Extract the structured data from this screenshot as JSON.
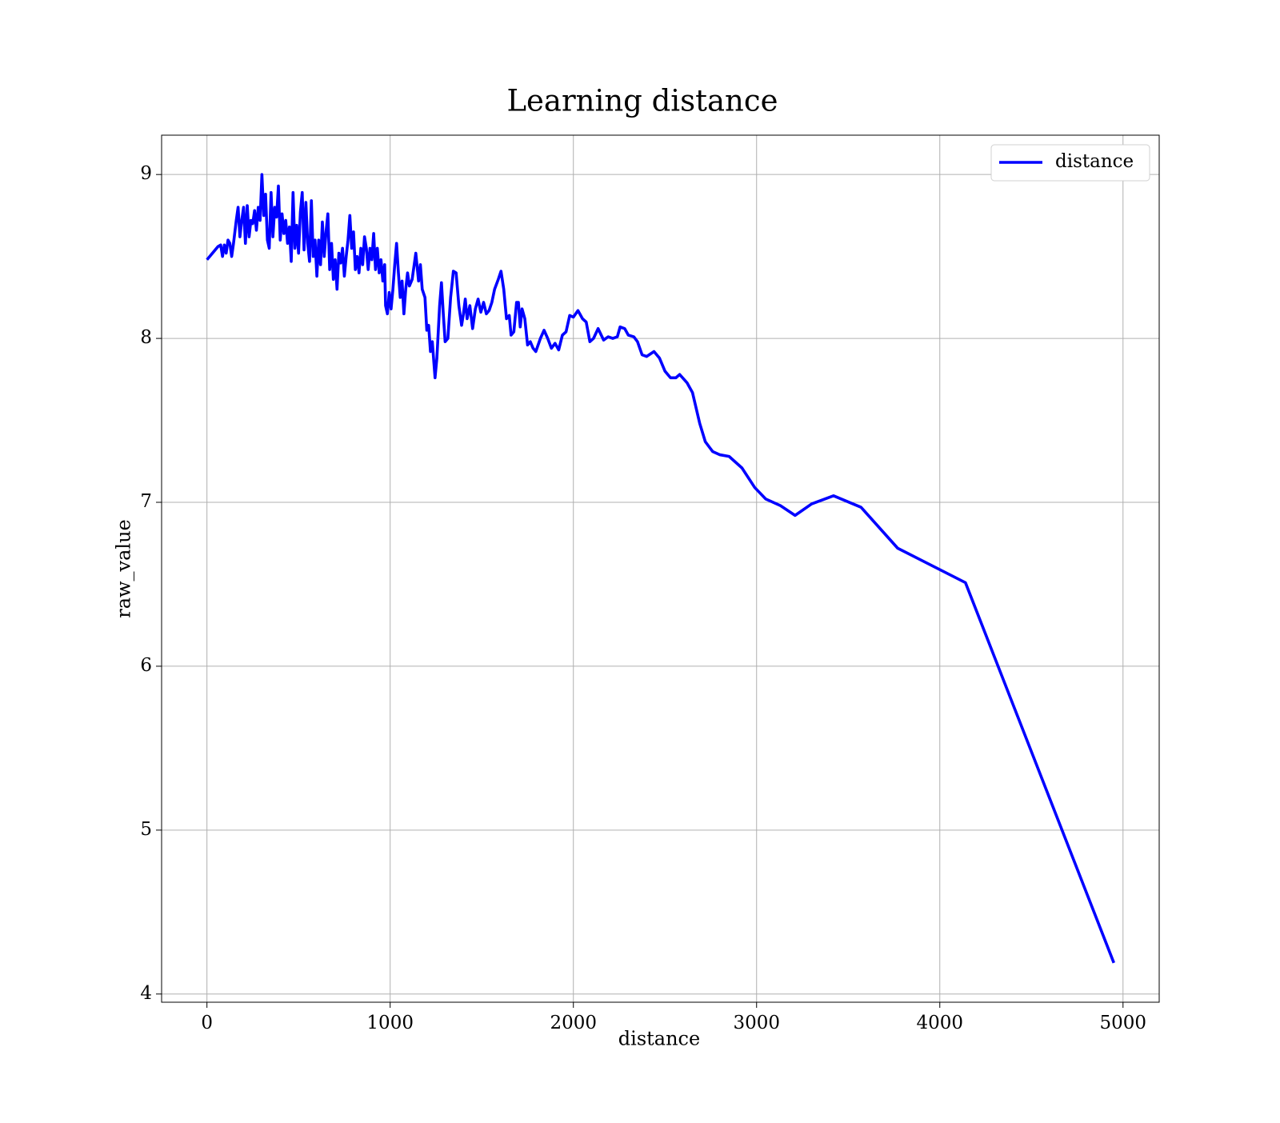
{
  "chart_data": {
    "type": "line",
    "title": "Learning distance",
    "x_label": "distance",
    "y_label": "raw_value",
    "x": [
      0,
      30,
      60,
      75,
      85,
      95,
      105,
      115,
      125,
      135,
      145,
      160,
      170,
      180,
      190,
      200,
      210,
      220,
      230,
      240,
      250,
      260,
      270,
      280,
      290,
      300,
      310,
      320,
      330,
      340,
      350,
      360,
      370,
      380,
      390,
      400,
      410,
      420,
      430,
      440,
      450,
      460,
      470,
      480,
      490,
      500,
      510,
      520,
      530,
      540,
      550,
      560,
      570,
      580,
      590,
      600,
      610,
      620,
      630,
      640,
      650,
      660,
      670,
      680,
      690,
      700,
      710,
      720,
      730,
      740,
      750,
      760,
      770,
      780,
      790,
      800,
      810,
      820,
      830,
      840,
      850,
      860,
      870,
      880,
      890,
      900,
      910,
      920,
      930,
      940,
      950,
      960,
      970,
      975,
      985,
      995,
      1005,
      1015,
      1025,
      1035,
      1045,
      1055,
      1065,
      1075,
      1085,
      1095,
      1105,
      1120,
      1140,
      1155,
      1165,
      1175,
      1190,
      1200,
      1210,
      1220,
      1230,
      1245,
      1255,
      1270,
      1280,
      1290,
      1300,
      1315,
      1330,
      1345,
      1360,
      1375,
      1390,
      1400,
      1410,
      1420,
      1435,
      1450,
      1465,
      1480,
      1495,
      1510,
      1525,
      1540,
      1555,
      1570,
      1590,
      1605,
      1620,
      1635,
      1650,
      1660,
      1675,
      1690,
      1700,
      1710,
      1720,
      1735,
      1750,
      1765,
      1780,
      1795,
      1820,
      1840,
      1860,
      1880,
      1900,
      1920,
      1940,
      1960,
      1980,
      2000,
      2025,
      2050,
      2070,
      2090,
      2110,
      2135,
      2165,
      2190,
      2215,
      2240,
      2255,
      2280,
      2300,
      2330,
      2350,
      2375,
      2400,
      2440,
      2470,
      2500,
      2530,
      2560,
      2580,
      2620,
      2650,
      2690,
      2720,
      2760,
      2800,
      2850,
      2920,
      2990,
      3050,
      3130,
      3210,
      3300,
      3420,
      3570,
      3770,
      4140,
      4950
    ],
    "series": [
      {
        "name": "distance",
        "color": "#0000ff",
        "values": [
          8.48,
          8.52,
          8.56,
          8.57,
          8.5,
          8.57,
          8.52,
          8.6,
          8.58,
          8.5,
          8.58,
          8.72,
          8.8,
          8.62,
          8.72,
          8.8,
          8.58,
          8.81,
          8.62,
          8.72,
          8.7,
          8.78,
          8.66,
          8.8,
          8.72,
          9.0,
          8.75,
          8.88,
          8.6,
          8.55,
          8.89,
          8.62,
          8.8,
          8.74,
          8.93,
          8.6,
          8.76,
          8.64,
          8.72,
          8.58,
          8.68,
          8.47,
          8.89,
          8.55,
          8.69,
          8.52,
          8.77,
          8.89,
          8.54,
          8.83,
          8.58,
          8.47,
          8.84,
          8.5,
          8.6,
          8.38,
          8.6,
          8.45,
          8.71,
          8.5,
          8.65,
          8.76,
          8.42,
          8.58,
          8.36,
          8.48,
          8.3,
          8.52,
          8.46,
          8.55,
          8.38,
          8.5,
          8.6,
          8.75,
          8.55,
          8.65,
          8.42,
          8.5,
          8.4,
          8.55,
          8.45,
          8.62,
          8.55,
          8.42,
          8.55,
          8.48,
          8.64,
          8.42,
          8.55,
          8.4,
          8.48,
          8.35,
          8.45,
          8.2,
          8.15,
          8.28,
          8.18,
          8.3,
          8.45,
          8.58,
          8.4,
          8.25,
          8.35,
          8.15,
          8.3,
          8.4,
          8.32,
          8.36,
          8.52,
          8.35,
          8.45,
          8.3,
          8.25,
          8.05,
          8.08,
          7.92,
          7.98,
          7.76,
          7.88,
          8.2,
          8.34,
          8.15,
          7.98,
          8.0,
          8.25,
          8.41,
          8.4,
          8.2,
          8.08,
          8.15,
          8.24,
          8.12,
          8.2,
          8.06,
          8.18,
          8.24,
          8.16,
          8.22,
          8.15,
          8.17,
          8.22,
          8.3,
          8.36,
          8.41,
          8.3,
          8.12,
          8.14,
          8.02,
          8.04,
          8.22,
          8.22,
          8.07,
          8.18,
          8.12,
          7.96,
          7.98,
          7.94,
          7.92,
          8.0,
          8.05,
          8.0,
          7.94,
          7.97,
          7.93,
          8.02,
          8.04,
          8.14,
          8.13,
          8.17,
          8.12,
          8.1,
          7.98,
          8.0,
          8.06,
          7.99,
          8.01,
          8.0,
          8.01,
          8.07,
          8.06,
          8.02,
          8.01,
          7.98,
          7.9,
          7.89,
          7.92,
          7.88,
          7.8,
          7.76,
          7.76,
          7.78,
          7.73,
          7.67,
          7.48,
          7.37,
          7.31,
          7.29,
          7.28,
          7.21,
          7.09,
          7.02,
          6.98,
          6.92,
          6.99,
          7.04,
          6.97,
          6.72,
          6.51,
          4.19
        ]
      }
    ],
    "xlim": [
      -247.5,
      5197.5
    ],
    "ylim": [
      3.95,
      9.24
    ],
    "xticks": [
      0,
      1000,
      2000,
      3000,
      4000,
      5000
    ],
    "yticks": [
      4,
      5,
      6,
      7,
      8,
      9
    ],
    "grid": true,
    "legend": "upper right"
  }
}
